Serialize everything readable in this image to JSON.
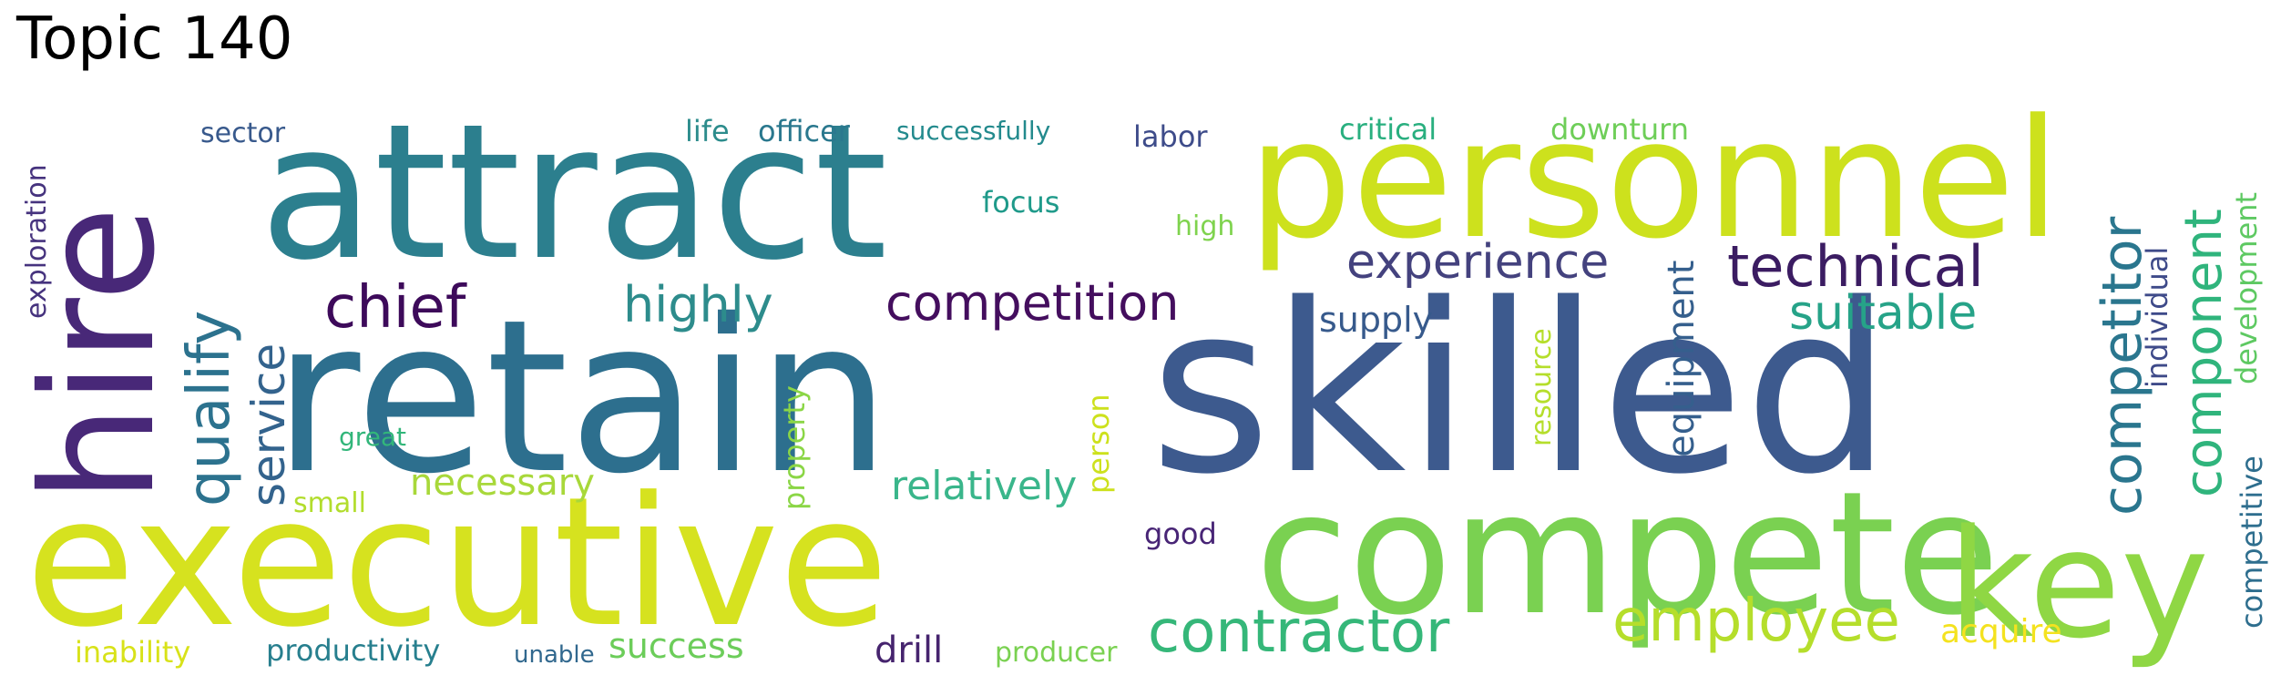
{
  "title": "Topic 140",
  "words": {
    "attract": "attract",
    "retain": "retain",
    "skilled": "skilled",
    "executive": "executive",
    "personnel": "personnel",
    "compete": "compete",
    "key": "key",
    "hire": "hire",
    "contractor": "contractor",
    "employee": "employee",
    "technical": "technical",
    "competitor": "competitor",
    "component": "component",
    "qualify": "qualify",
    "chief": "chief",
    "highly": "highly",
    "competition": "competition",
    "experience": "experience",
    "suitable": "suitable",
    "service": "service",
    "relatively": "relatively",
    "necessary": "necessary",
    "supply": "supply",
    "equipment": "equipment",
    "success": "success",
    "productivity": "productivity",
    "drill": "drill",
    "acquire": "acquire",
    "sector": "sector",
    "life": "life",
    "officer": "officer",
    "successfully": "successfully",
    "labor": "labor",
    "critical": "critical",
    "downturn": "downturn",
    "focus": "focus",
    "high": "high",
    "great": "great",
    "small": "small",
    "good": "good",
    "inability": "inability",
    "unable": "unable",
    "producer": "producer",
    "exploration": "exploration",
    "property": "property",
    "person": "person",
    "resource": "resource",
    "individual": "individual",
    "development": "development",
    "competitive": "competitive"
  }
}
